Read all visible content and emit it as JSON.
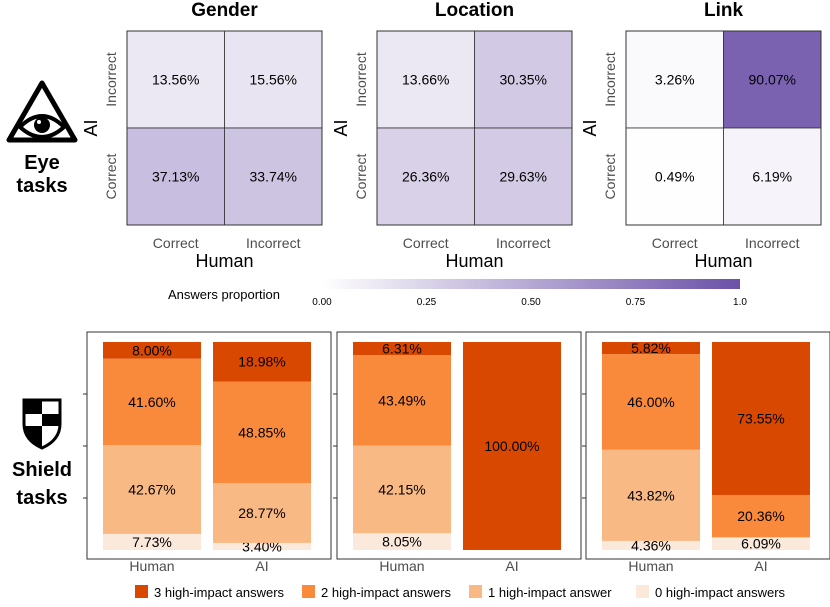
{
  "colors": {
    "purple_low": "#ffffff",
    "purple_high": "#6b51a8",
    "orange": [
      "#fbe9dc",
      "#f9b984",
      "#f98a3c",
      "#d94801"
    ],
    "axis_text": "#4d4d4d",
    "border": "#333333"
  },
  "icons": {
    "eye": "eye-in-triangle-icon",
    "shield": "shield-icon"
  },
  "labels": {
    "eye_tasks": [
      "Eye",
      "tasks"
    ],
    "shield_tasks": [
      "Shield",
      "tasks"
    ]
  },
  "colorbar": {
    "title": "Answers proportion",
    "ticks": [
      "0.00",
      "0.25",
      "0.50",
      "0.75",
      "1.0"
    ]
  },
  "legend": [
    "3 high-impact answers",
    "2 high-impact answers",
    "1 high-impact answer",
    "0 high-impact answers"
  ],
  "chart_data": [
    {
      "type": "heatmap",
      "title": "Gender",
      "xlabel": "Human",
      "ylabel": "AI",
      "x_categories": [
        "Correct",
        "Incorrect"
      ],
      "y_categories": [
        "Incorrect",
        "Correct"
      ],
      "cells": [
        {
          "y": "Incorrect",
          "x": "Correct",
          "value": 13.56,
          "label": "13.56%"
        },
        {
          "y": "Incorrect",
          "x": "Incorrect",
          "value": 15.56,
          "label": "15.56%"
        },
        {
          "y": "Correct",
          "x": "Correct",
          "value": 37.13,
          "label": "37.13%"
        },
        {
          "y": "Correct",
          "x": "Incorrect",
          "value": 33.74,
          "label": "33.74%"
        }
      ],
      "color_range": [
        0,
        1
      ]
    },
    {
      "type": "heatmap",
      "title": "Location",
      "xlabel": "Human",
      "ylabel": "AI",
      "x_categories": [
        "Correct",
        "Incorrect"
      ],
      "y_categories": [
        "Incorrect",
        "Correct"
      ],
      "cells": [
        {
          "y": "Incorrect",
          "x": "Correct",
          "value": 13.66,
          "label": "13.66%"
        },
        {
          "y": "Incorrect",
          "x": "Incorrect",
          "value": 30.35,
          "label": "30.35%"
        },
        {
          "y": "Correct",
          "x": "Correct",
          "value": 26.36,
          "label": "26.36%"
        },
        {
          "y": "Correct",
          "x": "Incorrect",
          "value": 29.63,
          "label": "29.63%"
        }
      ],
      "color_range": [
        0,
        1
      ]
    },
    {
      "type": "heatmap",
      "title": "Link",
      "xlabel": "Human",
      "ylabel": "AI",
      "x_categories": [
        "Correct",
        "Incorrect"
      ],
      "y_categories": [
        "Incorrect",
        "Correct"
      ],
      "cells": [
        {
          "y": "Incorrect",
          "x": "Correct",
          "value": 3.26,
          "label": "3.26%"
        },
        {
          "y": "Incorrect",
          "x": "Incorrect",
          "value": 90.07,
          "label": "90.07%"
        },
        {
          "y": "Correct",
          "x": "Correct",
          "value": 0.49,
          "label": "0.49%"
        },
        {
          "y": "Correct",
          "x": "Incorrect",
          "value": 6.19,
          "label": "6.19%"
        }
      ],
      "color_range": [
        0,
        1
      ]
    },
    {
      "type": "bar",
      "stacked": true,
      "task": "Gender",
      "categories": [
        "Human",
        "AI"
      ],
      "series": [
        {
          "name": "0 high-impact answers",
          "values": [
            7.73,
            3.4
          ],
          "labels": [
            "7.73%",
            "3.40%"
          ]
        },
        {
          "name": "1 high-impact answer",
          "values": [
            42.67,
            28.77
          ],
          "labels": [
            "42.67%",
            "28.77%"
          ]
        },
        {
          "name": "2 high-impact answers",
          "values": [
            41.6,
            48.85
          ],
          "labels": [
            "41.60%",
            "48.85%"
          ]
        },
        {
          "name": "3 high-impact answers",
          "values": [
            8.0,
            18.98
          ],
          "labels": [
            "8.00%",
            "18.98%"
          ]
        }
      ],
      "ylim": [
        0,
        100
      ]
    },
    {
      "type": "bar",
      "stacked": true,
      "task": "Location",
      "categories": [
        "Human",
        "AI"
      ],
      "series": [
        {
          "name": "0 high-impact answers",
          "values": [
            8.05,
            0
          ],
          "labels": [
            "8.05%",
            ""
          ]
        },
        {
          "name": "1 high-impact answer",
          "values": [
            42.15,
            0
          ],
          "labels": [
            "42.15%",
            ""
          ]
        },
        {
          "name": "2 high-impact answers",
          "values": [
            43.49,
            0
          ],
          "labels": [
            "43.49%",
            ""
          ]
        },
        {
          "name": "3 high-impact answers",
          "values": [
            6.31,
            100.0
          ],
          "labels": [
            "6.31%",
            "100.00%"
          ]
        }
      ],
      "ylim": [
        0,
        100
      ]
    },
    {
      "type": "bar",
      "stacked": true,
      "task": "Link",
      "categories": [
        "Human",
        "AI"
      ],
      "series": [
        {
          "name": "0 high-impact answers",
          "values": [
            4.36,
            6.09
          ],
          "labels": [
            "4.36%",
            "6.09%"
          ]
        },
        {
          "name": "1 high-impact answer",
          "values": [
            43.82,
            0
          ],
          "labels": [
            "43.82%",
            ""
          ]
        },
        {
          "name": "2 high-impact answers",
          "values": [
            46.0,
            20.36
          ],
          "labels": [
            "46.00%",
            "20.36%"
          ]
        },
        {
          "name": "3 high-impact answers",
          "values": [
            5.82,
            73.55
          ],
          "labels": [
            "5.82%",
            "73.55%"
          ]
        }
      ],
      "ylim": [
        0,
        100
      ]
    }
  ]
}
